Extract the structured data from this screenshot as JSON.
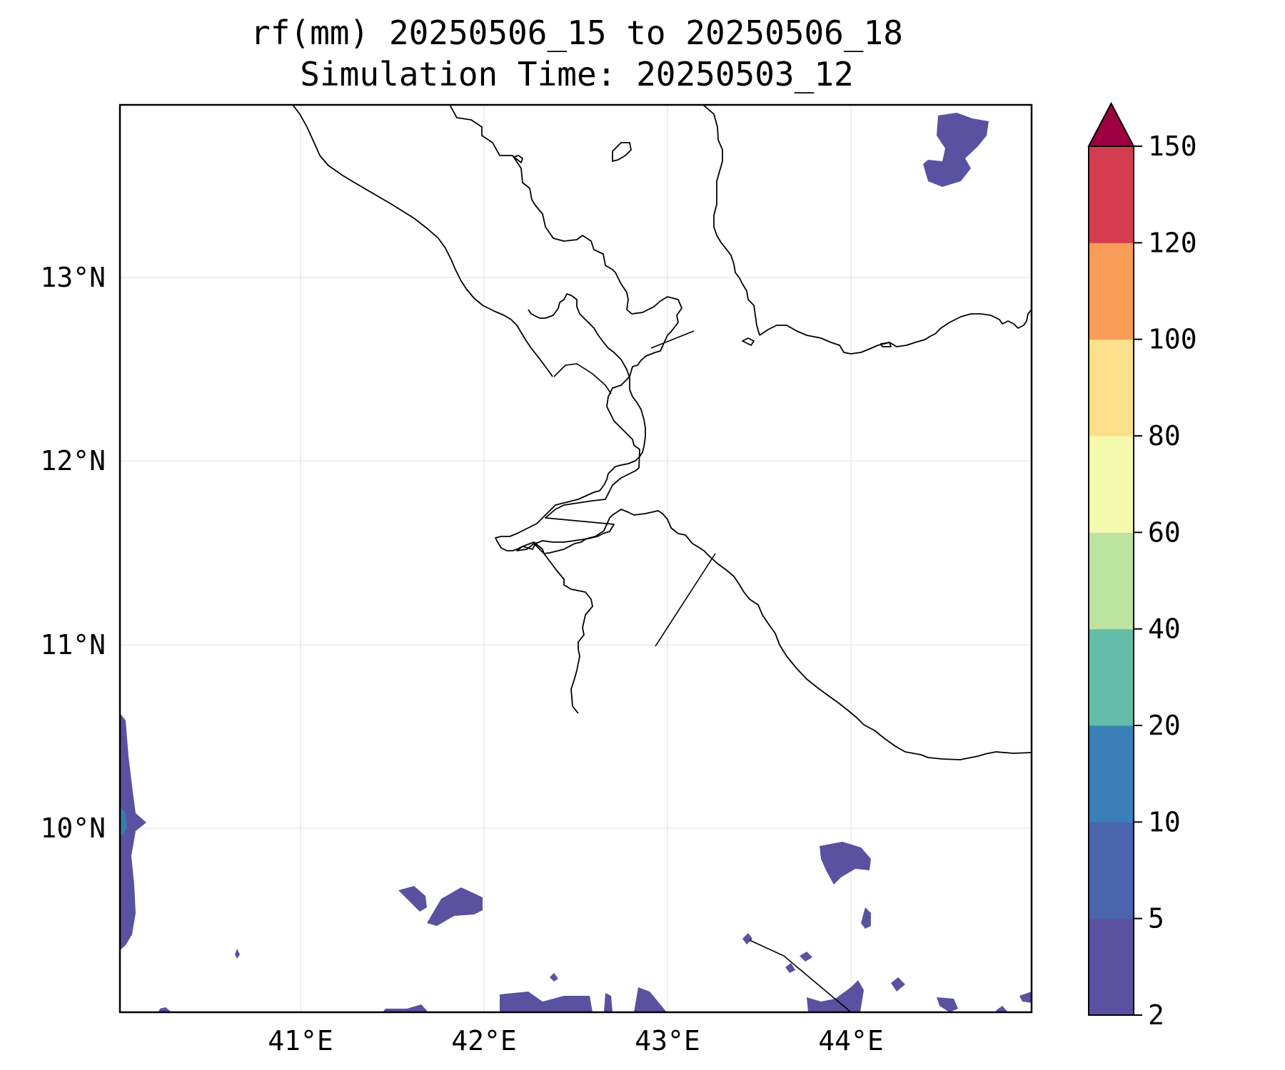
{
  "title_line1": "rf(mm) 20250506_15 to 20250506_18",
  "title_line2": "Simulation Time: 20250503_12",
  "x_ticks": [
    "41°E",
    "42°E",
    "43°E",
    "44°E"
  ],
  "y_ticks": [
    "13°N",
    "12°N",
    "11°N",
    "10°N"
  ],
  "colorbar": {
    "levels": [
      "2",
      "5",
      "10",
      "20",
      "40",
      "60",
      "80",
      "100",
      "120",
      "150"
    ],
    "colors": [
      "#5b51a1",
      "#4a64ad",
      "#3a7fb8",
      "#62bca8",
      "#bde3a0",
      "#f4f9ad",
      "#fcdf8b",
      "#f89c58",
      "#d43d4f",
      "#9e0142"
    ],
    "extend": "max"
  }
}
